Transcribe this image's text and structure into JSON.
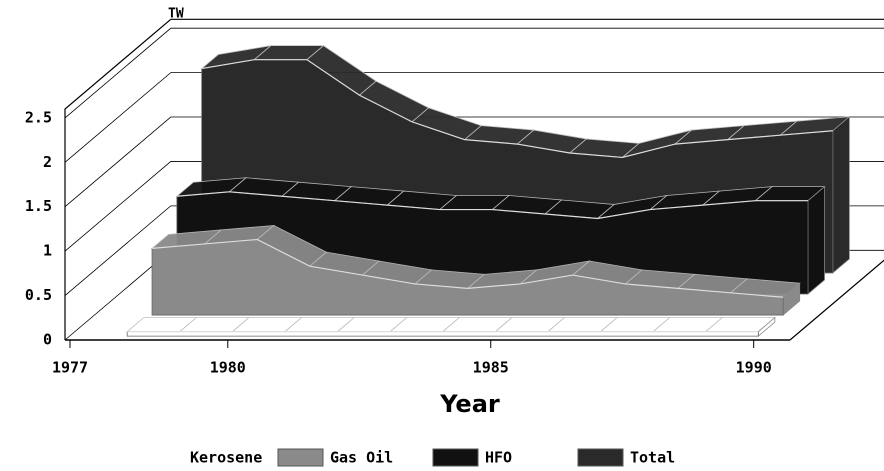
{
  "chart_data": {
    "type": "area3d",
    "y_label": "TW",
    "x_label": "Year",
    "x": [
      1978,
      1979,
      1980,
      1981,
      1982,
      1983,
      1984,
      1985,
      1986,
      1987,
      1988,
      1989,
      1990
    ],
    "series": [
      {
        "name": "Kerosene",
        "color": "#ffffff",
        "values": [
          0.05,
          0.05,
          0.05,
          0.05,
          0.05,
          0.05,
          0.05,
          0.05,
          0.05,
          0.05,
          0.05,
          0.05,
          0.05
        ]
      },
      {
        "name": "Gas Oil",
        "color": "#8a8a8a",
        "values": [
          0.75,
          0.8,
          0.85,
          0.55,
          0.45,
          0.35,
          0.3,
          0.35,
          0.45,
          0.35,
          0.3,
          0.25,
          0.2
        ]
      },
      {
        "name": "HFO",
        "color": "#111111",
        "values": [
          1.1,
          1.15,
          1.1,
          1.05,
          1.0,
          0.95,
          0.95,
          0.9,
          0.85,
          0.95,
          1.0,
          1.05,
          1.05
        ]
      },
      {
        "name": "Total",
        "color": "#2a2a2a",
        "values": [
          2.3,
          2.4,
          2.4,
          2.0,
          1.7,
          1.5,
          1.45,
          1.35,
          1.3,
          1.45,
          1.5,
          1.55,
          1.6
        ]
      }
    ],
    "xlim": [
      1977,
      1990.5
    ],
    "xticks": [
      1977,
      1980,
      1985,
      1990
    ],
    "ylim": [
      0,
      2.6
    ],
    "yticks": [
      0,
      0.5,
      1,
      1.5,
      2,
      2.5
    ],
    "grid": true
  }
}
